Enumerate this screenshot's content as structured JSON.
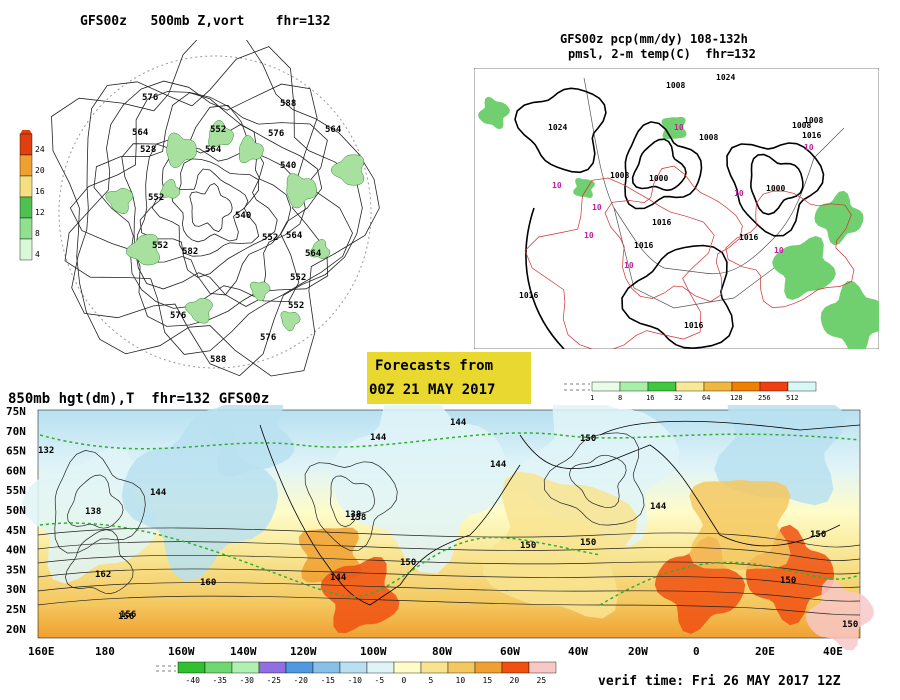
{
  "panel_500mb": {
    "title": "GFS00z   500mb Z,vort    fhr=132",
    "legend_ticks": [
      "24",
      "20",
      "16",
      "12",
      "8",
      "4"
    ],
    "legend_colors": [
      "#e04010",
      "#f0a030",
      "#f4e080",
      "#50c050",
      "#90e090",
      "#d8f8d8"
    ],
    "contour_labels": [
      "576",
      "588",
      "564",
      "552",
      "576",
      "540",
      "528",
      "564",
      "552",
      "540",
      "552",
      "564",
      "582",
      "552",
      "576",
      "564",
      "588",
      "564",
      "576",
      "552",
      "552"
    ]
  },
  "panel_precip": {
    "title_line1": "GFS00z pcp(mm/dy) 108-132h",
    "title_line2": "pmsl, 2-m temp(C)  fhr=132",
    "isobar_labels": [
      "1024",
      "1016",
      "1024",
      "1008",
      "1000",
      "1000",
      "1008",
      "1008",
      "1016",
      "1016",
      "1016",
      "1016",
      "1008",
      "1008",
      "1016"
    ],
    "temp_labels": [
      "10",
      "10",
      "10",
      "10",
      "10",
      "10",
      "10",
      "10"
    ],
    "legend_ticks": [
      "1",
      "8",
      "16",
      "32",
      "64",
      "128",
      "256",
      "512"
    ],
    "legend_colors": [
      "#e8fce8",
      "#a8f0a8",
      "#40c840",
      "#f8e898",
      "#f0b840",
      "#f08000",
      "#f04010",
      "#d8f8f8"
    ]
  },
  "banner": {
    "line1": "Forecasts from",
    "line2": "00Z 21 MAY 2017",
    "color": "#e8d830"
  },
  "panel_850mb": {
    "title": "850mb hgt(dm),T  fhr=132 GFS00z",
    "lat_labels": [
      "75N",
      "70N",
      "65N",
      "60N",
      "55N",
      "50N",
      "45N",
      "40N",
      "35N",
      "30N",
      "25N",
      "20N"
    ],
    "lon_labels": [
      "160E",
      "180",
      "160W",
      "140W",
      "120W",
      "100W",
      "80W",
      "60W",
      "40W",
      "20W",
      "0",
      "20E",
      "40E"
    ],
    "height_labels": [
      "132",
      "144",
      "138",
      "150",
      "144",
      "144",
      "138",
      "144",
      "150",
      "162",
      "150",
      "156",
      "138",
      "150",
      "144",
      "150",
      "150",
      "144",
      "160",
      "156",
      "150"
    ],
    "legend_ticks": [
      "-40",
      "-35",
      "-30",
      "-25",
      "-20",
      "-15",
      "-10",
      "-5",
      "0",
      "5",
      "10",
      "15",
      "20",
      "25"
    ],
    "legend_colors": [
      "#30c030",
      "#70d870",
      "#b0f0b0",
      "#9070e0",
      "#5098e0",
      "#88c0e8",
      "#b8e0f0",
      "#e0f4f8",
      "#fffcc8",
      "#f8e490",
      "#f4c860",
      "#f0a030",
      "#f05010",
      "#f8c8c8"
    ]
  },
  "verif": "verif time: Fri 26 MAY 2017 12Z"
}
